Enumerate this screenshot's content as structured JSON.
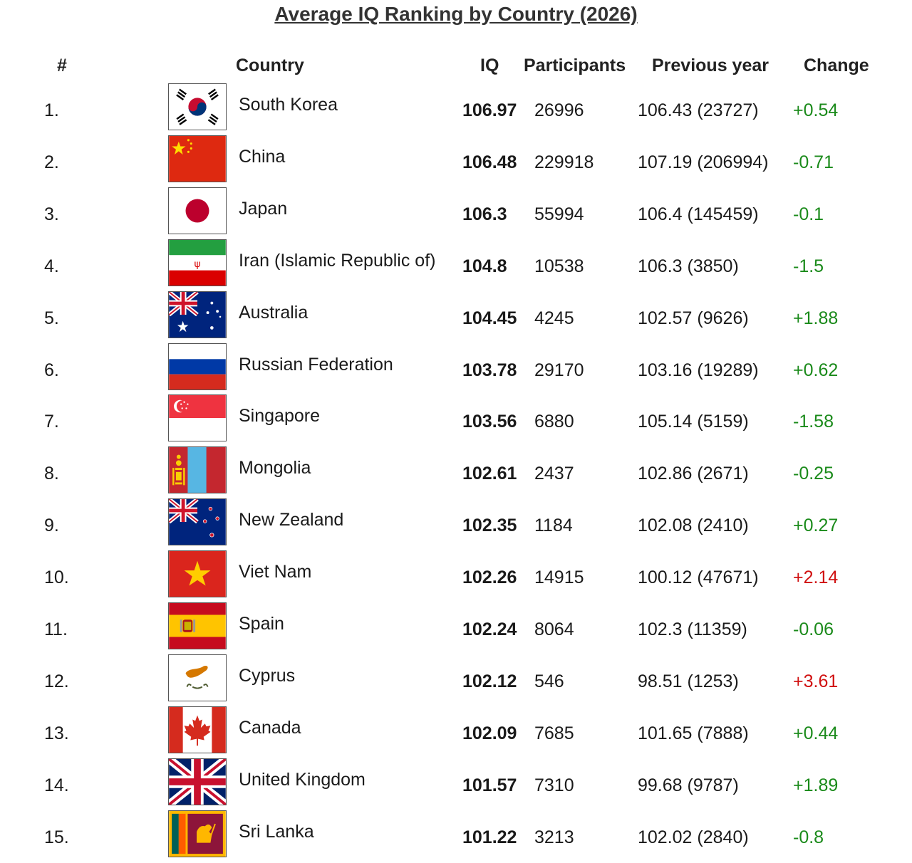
{
  "title": "Average IQ Ranking by Country (2026)",
  "headers": {
    "rank": "#",
    "country": "Country",
    "iq": "IQ",
    "participants": "Participants",
    "previous": "Previous year",
    "change": "Change"
  },
  "colors": {
    "positive_change": "#1a8a1a",
    "negative_change": "#d01010"
  },
  "rows": [
    {
      "rank": "1.",
      "flag": "south-korea-flag",
      "country": "South Korea",
      "iq": "106.97",
      "participants": "26996",
      "previous": "106.43 (23727)",
      "change": "+0.54",
      "change_color": "#1a8a1a"
    },
    {
      "rank": "2.",
      "flag": "china-flag",
      "country": "China",
      "iq": "106.48",
      "participants": "229918",
      "previous": "107.19 (206994)",
      "change": "-0.71",
      "change_color": "#1a8a1a"
    },
    {
      "rank": "3.",
      "flag": "japan-flag",
      "country": "Japan",
      "iq": "106.3",
      "participants": "55994",
      "previous": "106.4 (145459)",
      "change": "-0.1",
      "change_color": "#1a8a1a"
    },
    {
      "rank": "4.",
      "flag": "iran-flag",
      "country": "Iran (Islamic Republic of)",
      "iq": "104.8",
      "participants": "10538",
      "previous": "106.3 (3850)",
      "change": "-1.5",
      "change_color": "#1a8a1a"
    },
    {
      "rank": "5.",
      "flag": "australia-flag",
      "country": "Australia",
      "iq": "104.45",
      "participants": "4245",
      "previous": "102.57 (9626)",
      "change": "+1.88",
      "change_color": "#1a8a1a"
    },
    {
      "rank": "6.",
      "flag": "russia-flag",
      "country": "Russian Federation",
      "iq": "103.78",
      "participants": "29170",
      "previous": "103.16 (19289)",
      "change": "+0.62",
      "change_color": "#1a8a1a"
    },
    {
      "rank": "7.",
      "flag": "singapore-flag",
      "country": "Singapore",
      "iq": "103.56",
      "participants": "6880",
      "previous": "105.14 (5159)",
      "change": "-1.58",
      "change_color": "#1a8a1a"
    },
    {
      "rank": "8.",
      "flag": "mongolia-flag",
      "country": "Mongolia",
      "iq": "102.61",
      "participants": "2437",
      "previous": "102.86 (2671)",
      "change": "-0.25",
      "change_color": "#1a8a1a"
    },
    {
      "rank": "9.",
      "flag": "new-zealand-flag",
      "country": "New Zealand",
      "iq": "102.35",
      "participants": "1184",
      "previous": "102.08 (2410)",
      "change": "+0.27",
      "change_color": "#1a8a1a"
    },
    {
      "rank": "10.",
      "flag": "vietnam-flag",
      "country": "Viet Nam",
      "iq": "102.26",
      "participants": "14915",
      "previous": "100.12 (47671)",
      "change": "+2.14",
      "change_color": "#d01010"
    },
    {
      "rank": "11.",
      "flag": "spain-flag",
      "country": "Spain",
      "iq": "102.24",
      "participants": "8064",
      "previous": "102.3 (11359)",
      "change": "-0.06",
      "change_color": "#1a8a1a"
    },
    {
      "rank": "12.",
      "flag": "cyprus-flag",
      "country": "Cyprus",
      "iq": "102.12",
      "participants": "546",
      "previous": "98.51 (1253)",
      "change": "+3.61",
      "change_color": "#d01010"
    },
    {
      "rank": "13.",
      "flag": "canada-flag",
      "country": "Canada",
      "iq": "102.09",
      "participants": "7685",
      "previous": "101.65 (7888)",
      "change": "+0.44",
      "change_color": "#1a8a1a"
    },
    {
      "rank": "14.",
      "flag": "united-kingdom-flag",
      "country": "United Kingdom",
      "iq": "101.57",
      "participants": "7310",
      "previous": "99.68 (9787)",
      "change": "+1.89",
      "change_color": "#1a8a1a"
    },
    {
      "rank": "15.",
      "flag": "sri-lanka-flag",
      "country": "Sri Lanka",
      "iq": "101.22",
      "participants": "3213",
      "previous": "102.02 (2840)",
      "change": "-0.8",
      "change_color": "#1a8a1a"
    }
  ]
}
